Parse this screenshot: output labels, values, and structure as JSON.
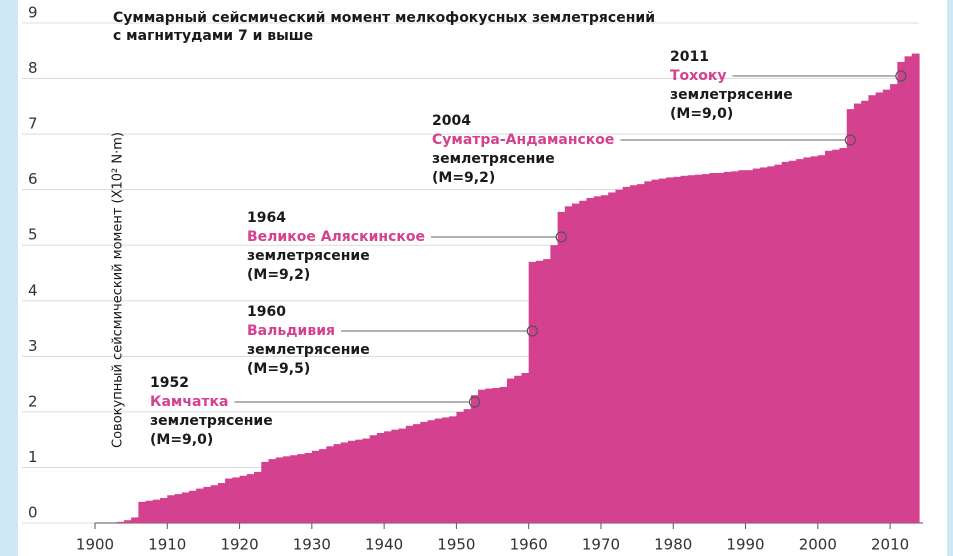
{
  "chart_data": {
    "type": "step-area",
    "title": [
      "Суммарный сейсмический момент мелкофокусных землетрясений",
      "с магнитудами 7 и выше"
    ],
    "y_label": "Совокупный сейсмический момент (X10² N·m)",
    "color": "#d4418f",
    "x": [
      1900,
      1901,
      1902,
      1903,
      1904,
      1905,
      1906,
      1907,
      1908,
      1909,
      1910,
      1911,
      1912,
      1913,
      1914,
      1915,
      1916,
      1917,
      1918,
      1919,
      1920,
      1921,
      1922,
      1923,
      1924,
      1925,
      1926,
      1927,
      1928,
      1929,
      1930,
      1931,
      1932,
      1933,
      1934,
      1935,
      1936,
      1937,
      1938,
      1939,
      1940,
      1941,
      1942,
      1943,
      1944,
      1945,
      1946,
      1947,
      1948,
      1949,
      1950,
      1951,
      1952,
      1953,
      1954,
      1955,
      1956,
      1957,
      1958,
      1959,
      1960,
      1961,
      1962,
      1963,
      1964,
      1965,
      1966,
      1967,
      1968,
      1969,
      1970,
      1971,
      1972,
      1973,
      1974,
      1975,
      1976,
      1977,
      1978,
      1979,
      1980,
      1981,
      1982,
      1983,
      1984,
      1985,
      1986,
      1987,
      1988,
      1989,
      1990,
      1991,
      1992,
      1993,
      1994,
      1995,
      1996,
      1997,
      1998,
      1999,
      2000,
      2001,
      2002,
      2003,
      2004,
      2005,
      2006,
      2007,
      2008,
      2009,
      2010,
      2011,
      2012,
      2013
    ],
    "values": [
      0,
      0,
      0,
      0.02,
      0.05,
      0.1,
      0.38,
      0.4,
      0.42,
      0.45,
      0.5,
      0.52,
      0.55,
      0.58,
      0.62,
      0.65,
      0.68,
      0.72,
      0.8,
      0.82,
      0.85,
      0.88,
      0.92,
      1.1,
      1.15,
      1.18,
      1.2,
      1.22,
      1.24,
      1.26,
      1.3,
      1.33,
      1.38,
      1.42,
      1.45,
      1.48,
      1.5,
      1.52,
      1.58,
      1.62,
      1.65,
      1.68,
      1.7,
      1.75,
      1.78,
      1.82,
      1.85,
      1.88,
      1.9,
      1.92,
      2.0,
      2.05,
      2.3,
      2.4,
      2.42,
      2.43,
      2.45,
      2.6,
      2.65,
      2.7,
      4.7,
      4.72,
      4.75,
      5.0,
      5.6,
      5.7,
      5.75,
      5.8,
      5.85,
      5.88,
      5.9,
      5.95,
      6.0,
      6.05,
      6.08,
      6.1,
      6.15,
      6.18,
      6.2,
      6.22,
      6.23,
      6.25,
      6.26,
      6.27,
      6.28,
      6.3,
      6.3,
      6.32,
      6.33,
      6.35,
      6.35,
      6.38,
      6.4,
      6.42,
      6.45,
      6.5,
      6.52,
      6.55,
      6.58,
      6.6,
      6.62,
      6.7,
      6.72,
      6.75,
      7.45,
      7.55,
      7.6,
      7.7,
      7.75,
      7.8,
      7.9,
      8.3,
      8.4,
      8.45
    ],
    "xlim": [
      1900,
      2014
    ],
    "xticks": [
      1900,
      1910,
      1920,
      1930,
      1940,
      1950,
      1960,
      1970,
      1980,
      1990,
      2000,
      2010
    ],
    "ylim": [
      0,
      9
    ],
    "yticks": [
      0,
      1,
      2,
      3,
      4,
      5,
      6,
      7,
      8,
      9
    ],
    "grid": true,
    "annotations": [
      {
        "year": 1952,
        "name": "Камчатка",
        "text": "землетрясение",
        "magnitude": "(M=9,0)"
      },
      {
        "year": 1960,
        "name": "Вальдивия",
        "text": "землетрясение",
        "magnitude": "(M=9,5)"
      },
      {
        "year": 1964,
        "name": "Великое Аляскинское",
        "text": "землетрясение",
        "magnitude": "(M=9,2)"
      },
      {
        "year": 2004,
        "name": "Суматра-Андаманское",
        "text": "землетрясение",
        "magnitude": "(M=9,2)"
      },
      {
        "year": 2011,
        "name": "Тохоку",
        "text": "землетрясение",
        "magnitude": "(M=9,0)"
      }
    ]
  }
}
